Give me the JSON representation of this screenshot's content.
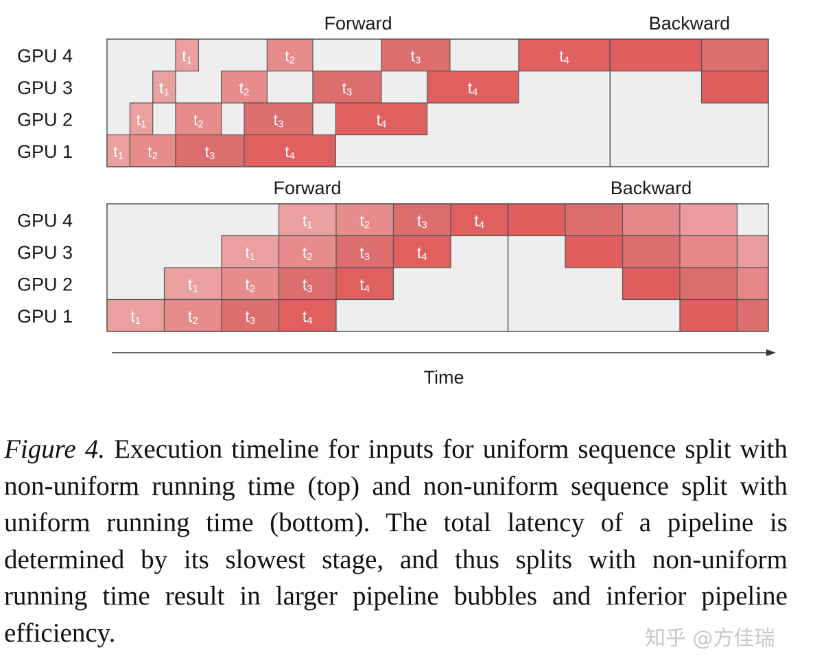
{
  "colors": {
    "idle": "#eeeeee",
    "grid": "#555555",
    "fwd_t1": "#eba0a0",
    "fwd_t2": "#e68c8c",
    "fwd_t3": "#dc6e6e",
    "fwd_t4": "#e06060",
    "bwd_1": "#e05e5e",
    "bwd_2": "#dc6e6e",
    "bwd_3": "#e68888",
    "bwd_4": "#eb9c9c",
    "text": "#1a1a1a",
    "cell_text": "#ffffff"
  },
  "diagrams": [
    {
      "id": "top",
      "forward_title": "Forward",
      "backward_title": "Backward",
      "gpus": [
        {
          "label": "GPU 4",
          "cells": [
            {
              "start": 3,
              "end": 4,
              "label": "t",
              "sub": "1",
              "color": "fwd_t1"
            },
            {
              "start": 7,
              "end": 9,
              "label": "t",
              "sub": "2",
              "color": "fwd_t2"
            },
            {
              "start": 12,
              "end": 15,
              "label": "t",
              "sub": "3",
              "color": "fwd_t3"
            },
            {
              "start": 18,
              "end": 22,
              "label": "t",
              "sub": "4",
              "color": "fwd_t4"
            },
            {
              "start": 22,
              "end": 26,
              "label": "",
              "sub": "",
              "color": "bwd_1"
            },
            {
              "start": 26,
              "end": 29,
              "label": "",
              "sub": "",
              "color": "bwd_2"
            }
          ]
        },
        {
          "label": "GPU 3",
          "cells": [
            {
              "start": 2,
              "end": 3,
              "label": "t",
              "sub": "1",
              "color": "fwd_t1"
            },
            {
              "start": 5,
              "end": 7,
              "label": "t",
              "sub": "2",
              "color": "fwd_t2"
            },
            {
              "start": 9,
              "end": 12,
              "label": "t",
              "sub": "3",
              "color": "fwd_t3"
            },
            {
              "start": 14,
              "end": 18,
              "label": "t",
              "sub": "4",
              "color": "fwd_t4"
            },
            {
              "start": 26,
              "end": 29,
              "label": "",
              "sub": "",
              "color": "bwd_1"
            }
          ]
        },
        {
          "label": "GPU 2",
          "cells": [
            {
              "start": 1,
              "end": 2,
              "label": "t",
              "sub": "1",
              "color": "fwd_t1"
            },
            {
              "start": 3,
              "end": 5,
              "label": "t",
              "sub": "2",
              "color": "fwd_t2"
            },
            {
              "start": 6,
              "end": 9,
              "label": "t",
              "sub": "3",
              "color": "fwd_t3"
            },
            {
              "start": 10,
              "end": 14,
              "label": "t",
              "sub": "4",
              "color": "fwd_t4"
            }
          ]
        },
        {
          "label": "GPU 1",
          "cells": [
            {
              "start": 0,
              "end": 1,
              "label": "t",
              "sub": "1",
              "color": "fwd_t1"
            },
            {
              "start": 1,
              "end": 3,
              "label": "t",
              "sub": "2",
              "color": "fwd_t2"
            },
            {
              "start": 3,
              "end": 6,
              "label": "t",
              "sub": "3",
              "color": "fwd_t3"
            },
            {
              "start": 6,
              "end": 10,
              "label": "t",
              "sub": "4",
              "color": "fwd_t4"
            }
          ]
        }
      ],
      "divider_at": 22
    },
    {
      "id": "bottom",
      "forward_title": "Forward",
      "backward_title": "Backward",
      "gpus": [
        {
          "label": "GPU 4",
          "cells": [
            {
              "start": 3,
              "end": 4,
              "label": "t",
              "sub": "1",
              "color": "fwd_t1"
            },
            {
              "start": 4,
              "end": 5,
              "label": "t",
              "sub": "2",
              "color": "fwd_t2"
            },
            {
              "start": 5,
              "end": 6,
              "label": "t",
              "sub": "3",
              "color": "fwd_t3"
            },
            {
              "start": 6,
              "end": 7,
              "label": "t",
              "sub": "4",
              "color": "fwd_t4"
            },
            {
              "start": 7,
              "end": 8,
              "label": "",
              "sub": "",
              "color": "bwd_1"
            },
            {
              "start": 8,
              "end": 9,
              "label": "",
              "sub": "",
              "color": "bwd_2"
            },
            {
              "start": 9,
              "end": 10,
              "label": "",
              "sub": "",
              "color": "bwd_3"
            },
            {
              "start": 10,
              "end": 11,
              "label": "",
              "sub": "",
              "color": "bwd_4"
            }
          ]
        },
        {
          "label": "GPU 3",
          "cells": [
            {
              "start": 2,
              "end": 3,
              "label": "t",
              "sub": "1",
              "color": "fwd_t1"
            },
            {
              "start": 3,
              "end": 4,
              "label": "t",
              "sub": "2",
              "color": "fwd_t2"
            },
            {
              "start": 4,
              "end": 5,
              "label": "t",
              "sub": "3",
              "color": "fwd_t3"
            },
            {
              "start": 5,
              "end": 6,
              "label": "t",
              "sub": "4",
              "color": "fwd_t4"
            },
            {
              "start": 8,
              "end": 9,
              "label": "",
              "sub": "",
              "color": "bwd_1"
            },
            {
              "start": 9,
              "end": 10,
              "label": "",
              "sub": "",
              "color": "bwd_2"
            },
            {
              "start": 10,
              "end": 11,
              "label": "",
              "sub": "",
              "color": "bwd_3"
            },
            {
              "start": 11,
              "end": 11.55,
              "label": "",
              "sub": "",
              "color": "bwd_4"
            }
          ]
        },
        {
          "label": "GPU 2",
          "cells": [
            {
              "start": 1,
              "end": 2,
              "label": "t",
              "sub": "1",
              "color": "fwd_t1"
            },
            {
              "start": 2,
              "end": 3,
              "label": "t",
              "sub": "2",
              "color": "fwd_t2"
            },
            {
              "start": 3,
              "end": 4,
              "label": "t",
              "sub": "3",
              "color": "fwd_t3"
            },
            {
              "start": 4,
              "end": 5,
              "label": "t",
              "sub": "4",
              "color": "fwd_t4"
            },
            {
              "start": 9,
              "end": 10,
              "label": "",
              "sub": "",
              "color": "bwd_1"
            },
            {
              "start": 10,
              "end": 11,
              "label": "",
              "sub": "",
              "color": "bwd_2"
            },
            {
              "start": 11,
              "end": 11.55,
              "label": "",
              "sub": "",
              "color": "bwd_3"
            }
          ]
        },
        {
          "label": "GPU 1",
          "cells": [
            {
              "start": 0,
              "end": 1,
              "label": "t",
              "sub": "1",
              "color": "fwd_t1"
            },
            {
              "start": 1,
              "end": 2,
              "label": "t",
              "sub": "2",
              "color": "fwd_t2"
            },
            {
              "start": 2,
              "end": 3,
              "label": "t",
              "sub": "3",
              "color": "fwd_t3"
            },
            {
              "start": 3,
              "end": 4,
              "label": "t",
              "sub": "4",
              "color": "fwd_t4"
            },
            {
              "start": 10,
              "end": 11,
              "label": "",
              "sub": "",
              "color": "bwd_1"
            },
            {
              "start": 11,
              "end": 11.55,
              "label": "",
              "sub": "",
              "color": "bwd_2"
            }
          ]
        }
      ],
      "divider_at": 7
    }
  ],
  "time_axis": {
    "label": "Time"
  },
  "caption": {
    "prefix": "Figure 4.",
    "text": "Execution timeline for inputs for uniform sequence split with non-uniform running time (top) and non-uniform sequence split with uniform running time (bottom). The total latency of a pipeline is determined by its slowest stage, and thus splits with non-uniform running time result in larger pipeline bubbles and inferior pipeline efficiency."
  },
  "watermark": "知乎 @方佳瑞"
}
